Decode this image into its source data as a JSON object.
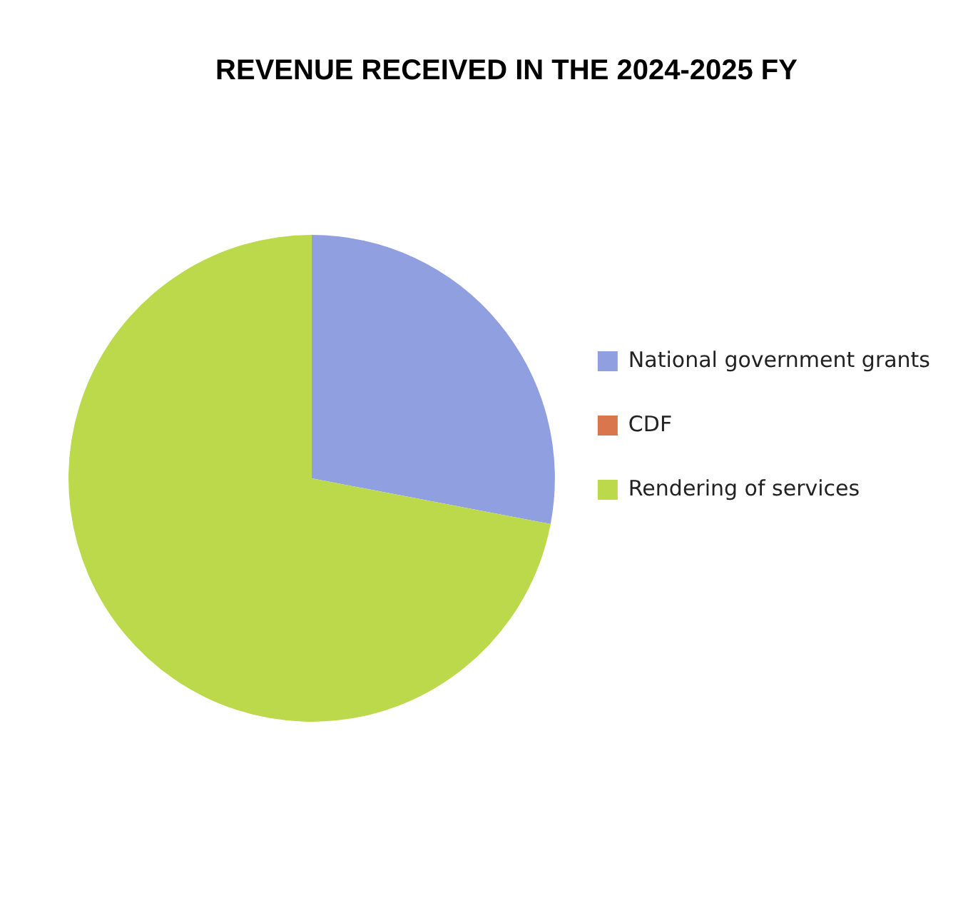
{
  "chart_data": {
    "type": "pie",
    "title": "REVENUE RECEIVED IN THE 2024-2025 FY",
    "categories": [
      "National government grants",
      "CDF",
      "Rendering of services"
    ],
    "values": [
      28,
      0,
      72
    ],
    "colors": [
      "#8f9fe0",
      "#d9764e",
      "#bcd94b"
    ],
    "legend": "right"
  }
}
